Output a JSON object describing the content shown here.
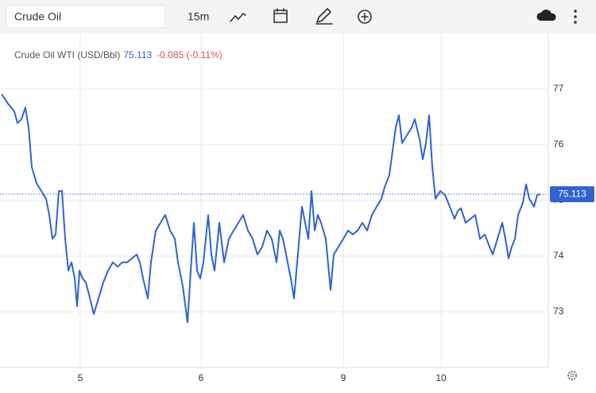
{
  "toolbar": {
    "search": "Crude Oil",
    "interval": "15m"
  },
  "chart_data": {
    "type": "line",
    "title": "Crude Oil WTI (USD/Bbl)",
    "price": {
      "value": 75.113,
      "label": "75.113"
    },
    "change": "-0.085 (-0.11%)",
    "x": [
      2,
      10,
      18,
      22,
      27,
      32,
      36,
      40,
      46,
      52,
      58,
      62,
      66,
      70,
      74,
      78,
      82,
      86,
      90,
      94,
      97,
      100,
      104,
      108,
      112,
      118,
      124,
      130,
      136,
      142,
      148,
      154,
      160,
      166,
      172,
      176,
      180,
      186,
      190,
      196,
      202,
      208,
      214,
      220,
      224,
      230,
      236,
      240,
      244,
      248,
      252,
      256,
      262,
      266,
      270,
      276,
      282,
      288,
      294,
      300,
      306,
      312,
      318,
      324,
      330,
      336,
      342,
      348,
      352,
      356,
      360,
      366,
      370,
      374,
      380,
      384,
      388,
      392,
      396,
      400,
      404,
      410,
      416,
      420,
      426,
      432,
      438,
      444,
      450,
      456,
      462,
      468,
      474,
      480,
      484,
      490,
      494,
      498,
      502,
      506,
      512,
      518,
      522,
      528,
      532,
      536,
      540,
      544,
      548,
      554,
      560,
      566,
      572,
      576,
      580,
      586,
      592,
      598,
      604,
      610,
      616,
      620,
      626,
      632,
      636,
      640,
      644,
      648,
      652,
      658,
      662,
      666,
      672,
      676,
      680
    ],
    "series": [
      {
        "name": "Crude Oil WTI",
        "color": "#2f63d1",
        "values": [
          76.91,
          76.74,
          76.6,
          76.39,
          76.46,
          76.67,
          76.31,
          75.6,
          75.31,
          75.17,
          75.03,
          74.74,
          74.31,
          74.39,
          75.17,
          75.17,
          74.31,
          73.74,
          73.89,
          73.6,
          73.1,
          73.74,
          73.6,
          73.53,
          73.31,
          72.96,
          73.24,
          73.53,
          73.74,
          73.89,
          73.81,
          73.89,
          73.89,
          73.96,
          74.03,
          73.89,
          73.6,
          73.24,
          73.89,
          74.46,
          74.6,
          74.74,
          74.46,
          74.31,
          73.89,
          73.46,
          72.81,
          73.74,
          74.6,
          73.74,
          73.6,
          73.89,
          74.74,
          74.03,
          73.74,
          74.6,
          73.89,
          74.31,
          74.46,
          74.6,
          74.74,
          74.46,
          74.31,
          74.03,
          74.17,
          74.46,
          74.31,
          73.89,
          74.46,
          74.31,
          74.03,
          73.6,
          73.24,
          73.89,
          74.89,
          74.6,
          74.31,
          75.17,
          74.46,
          74.74,
          74.6,
          74.31,
          73.39,
          74.03,
          74.17,
          74.31,
          74.46,
          74.39,
          74.46,
          74.6,
          74.46,
          74.74,
          74.89,
          75.03,
          75.24,
          75.46,
          75.89,
          76.31,
          76.53,
          76.03,
          76.17,
          76.31,
          76.46,
          76.1,
          75.74,
          76.03,
          76.53,
          75.6,
          75.03,
          75.17,
          75.1,
          74.89,
          74.67,
          74.81,
          74.86,
          74.6,
          74.67,
          74.74,
          74.31,
          74.39,
          74.17,
          74.03,
          74.31,
          74.6,
          74.31,
          73.96,
          74.17,
          74.31,
          74.74,
          74.96,
          75.29,
          75.03,
          74.89,
          75.1,
          75.113
        ]
      }
    ],
    "xlim": [
      0,
      690
    ],
    "xticks": [
      {
        "value": 101,
        "label": "5"
      },
      {
        "value": 253,
        "label": "6"
      },
      {
        "value": 432,
        "label": "9"
      },
      {
        "value": 555,
        "label": "10"
      }
    ],
    "ylim": [
      72,
      78
    ],
    "yticks": [
      73,
      74,
      75,
      76,
      77
    ],
    "grid": true
  }
}
